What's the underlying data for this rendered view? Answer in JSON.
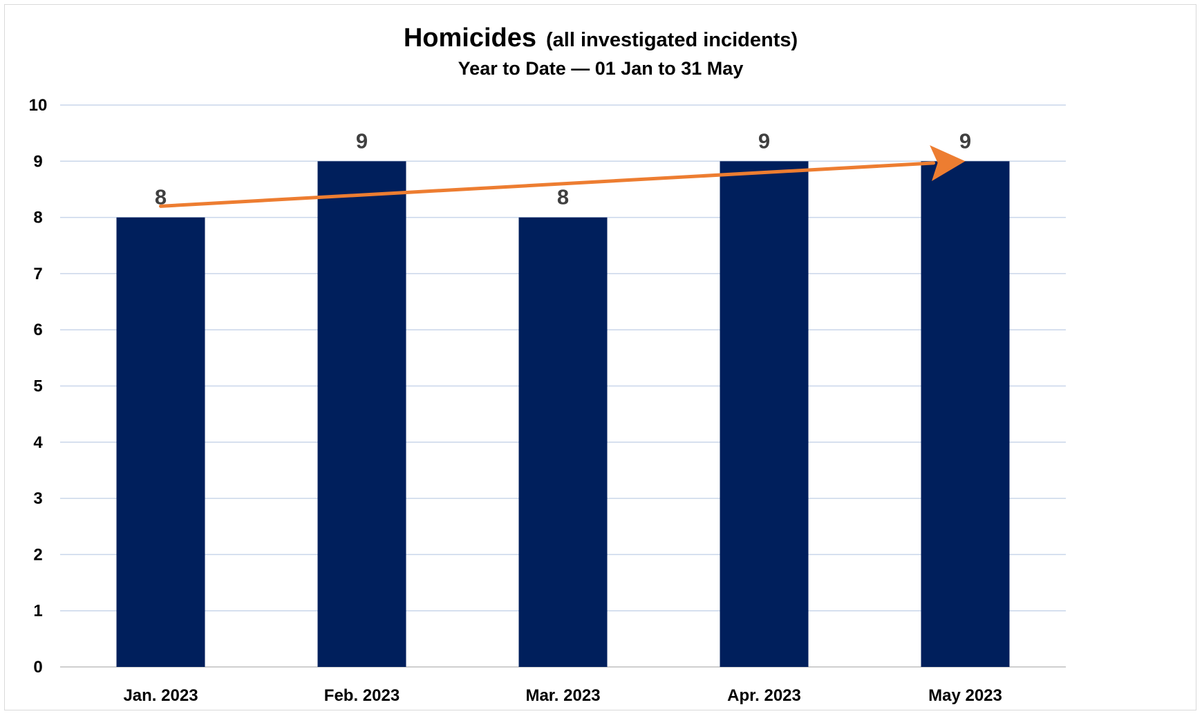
{
  "chart_data": {
    "type": "bar",
    "title": "Homicides",
    "title_suffix": "(all investigated incidents)",
    "subtitle": "Year to Date — 01 Jan to 31 May",
    "xlabel": "",
    "ylabel": "",
    "categories": [
      "Jan. 2023",
      "Feb. 2023",
      "Mar. 2023",
      "Apr. 2023",
      "May 2023"
    ],
    "values": [
      8,
      9,
      8,
      9,
      9
    ],
    "data_labels": [
      "8",
      "9",
      "8",
      "9",
      "9"
    ],
    "ylim": [
      0,
      10
    ],
    "yticks": [
      "0",
      "1",
      "2",
      "3",
      "4",
      "5",
      "6",
      "7",
      "8",
      "9",
      "10"
    ],
    "grid": true,
    "legend": "none",
    "bar_color": "#001f5c",
    "grid_color": "#c9d6ea",
    "trend_arrow": {
      "color": "#ed7d31",
      "from": {
        "category": "Jan. 2023",
        "value": 8.2
      },
      "to": {
        "category": "May 2023",
        "value": 9.0
      }
    }
  }
}
